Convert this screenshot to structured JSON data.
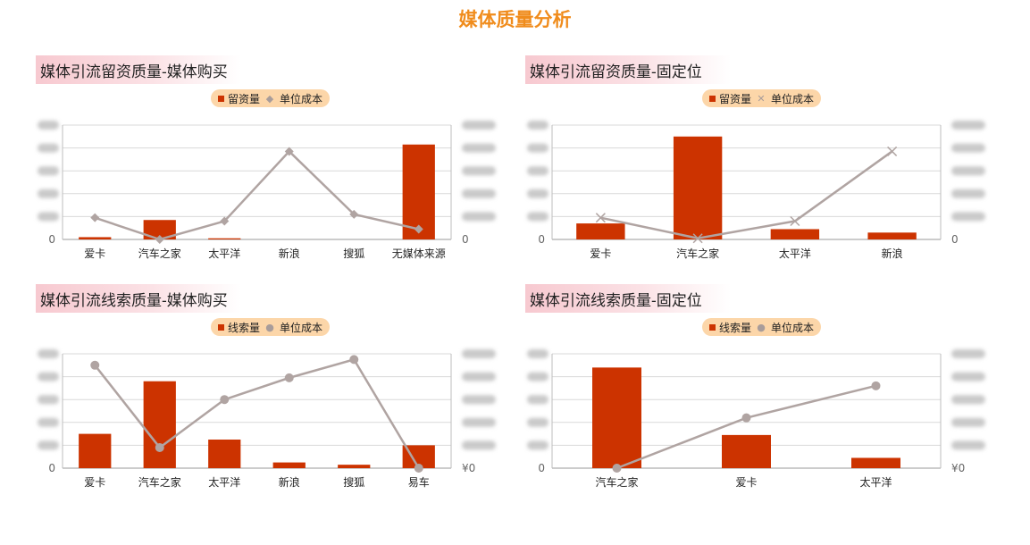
{
  "page": {
    "title": "媒体质量分析"
  },
  "panels": [
    {
      "title": "媒体引流留资质量-媒体购买",
      "legend": {
        "bar": "留资量",
        "line": "单位成本",
        "line_marker": "◆"
      },
      "right_ticks": [
        "0"
      ],
      "left_ticks": [
        "0"
      ]
    },
    {
      "title": "媒体引流留资质量-固定位",
      "legend": {
        "bar": "留资量",
        "line": "单位成本",
        "line_marker": "✕"
      },
      "right_ticks": [
        "0"
      ],
      "left_ticks": [
        "0"
      ]
    },
    {
      "title": "媒体引流线索质量-媒体购买",
      "legend": {
        "bar": "线索量",
        "line": "单位成本",
        "line_marker": "●"
      },
      "right_ticks": [
        "¥0"
      ],
      "left_ticks": [
        "0"
      ]
    },
    {
      "title": "媒体引流线索质量-固定位",
      "legend": {
        "bar": "线索量",
        "line": "单位成本",
        "line_marker": "●"
      },
      "right_ticks": [
        "¥0"
      ],
      "left_ticks": [
        "0"
      ]
    }
  ],
  "chart_data": [
    {
      "type": "bar",
      "title": "媒体引流留资质量-媒体购买",
      "categories": [
        "爱卡",
        "汽车之家",
        "太平洋",
        "新浪",
        "搜狐",
        "无媒体来源"
      ],
      "series": [
        {
          "name": "留资量",
          "kind": "bar",
          "axis": "left",
          "values": [
            2,
            17,
            1,
            0,
            0,
            83
          ]
        },
        {
          "name": "单位成本",
          "kind": "line",
          "axis": "right",
          "marker": "diamond",
          "values": [
            19,
            0,
            16,
            77,
            22,
            9
          ]
        }
      ],
      "ylim_left": [
        0,
        100
      ],
      "ylim_right": [
        0,
        100
      ],
      "grid": true,
      "legend": "top-center",
      "colors": {
        "bar": "#cc3300",
        "line": "#b0a4a2"
      }
    },
    {
      "type": "bar",
      "title": "媒体引流留资质量-固定位",
      "categories": [
        "爱卡",
        "汽车之家",
        "太平洋",
        "新浪"
      ],
      "series": [
        {
          "name": "留资量",
          "kind": "bar",
          "axis": "left",
          "values": [
            14,
            90,
            9,
            6
          ]
        },
        {
          "name": "单位成本",
          "kind": "line",
          "axis": "right",
          "marker": "x",
          "values": [
            19,
            1,
            16,
            77
          ]
        }
      ],
      "ylim_left": [
        0,
        100
      ],
      "ylim_right": [
        0,
        100
      ],
      "grid": true,
      "legend": "top-center",
      "colors": {
        "bar": "#cc3300",
        "line": "#b0a4a2"
      }
    },
    {
      "type": "bar",
      "title": "媒体引流线索质量-媒体购买",
      "categories": [
        "爱卡",
        "汽车之家",
        "太平洋",
        "新浪",
        "搜狐",
        "易车"
      ],
      "series": [
        {
          "name": "线索量",
          "kind": "bar",
          "axis": "left",
          "values": [
            30,
            76,
            25,
            5,
            3,
            20
          ]
        },
        {
          "name": "单位成本",
          "kind": "line",
          "axis": "right",
          "marker": "circle",
          "values": [
            90,
            18,
            60,
            79,
            95,
            0
          ]
        }
      ],
      "ylim_left": [
        0,
        100
      ],
      "ylim_right": [
        0,
        100
      ],
      "grid": true,
      "legend": "top-center",
      "colors": {
        "bar": "#cc3300",
        "line": "#b0a4a2"
      }
    },
    {
      "type": "bar",
      "title": "媒体引流线索质量-固定位",
      "categories": [
        "汽车之家",
        "爱卡",
        "太平洋"
      ],
      "series": [
        {
          "name": "线索量",
          "kind": "bar",
          "axis": "left",
          "values": [
            88,
            29,
            9
          ]
        },
        {
          "name": "单位成本",
          "kind": "line",
          "axis": "right",
          "marker": "circle",
          "values": [
            0,
            44,
            72
          ]
        }
      ],
      "ylim_left": [
        0,
        100
      ],
      "ylim_right": [
        0,
        100
      ],
      "grid": true,
      "legend": "top-center",
      "colors": {
        "bar": "#cc3300",
        "line": "#b0a4a2"
      }
    }
  ]
}
